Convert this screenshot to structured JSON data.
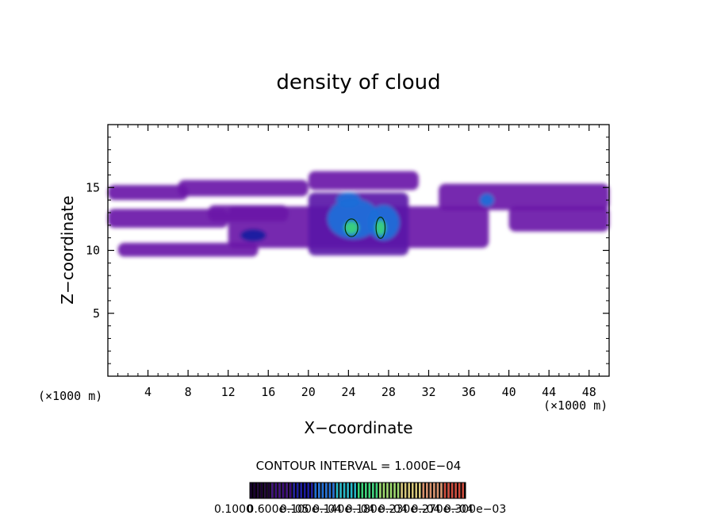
{
  "chart_data": {
    "type": "heatmap",
    "title": "density of cloud",
    "xlabel": "X−coordinate",
    "ylabel": "Z−coordinate",
    "x_unit": "(×1000 m)",
    "y_unit": "(×1000 m)",
    "xlim": [
      0,
      50
    ],
    "ylim": [
      0,
      20
    ],
    "x_ticks": [
      4,
      8,
      12,
      16,
      20,
      24,
      28,
      32,
      36,
      40,
      44,
      48
    ],
    "y_ticks": [
      5,
      10,
      15
    ],
    "contour_interval_text": "CONTOUR INTERVAL = 1.000E−04",
    "colorbar_labels": [
      "0.1000",
      "0.600e−05",
      "0.100e−04",
      "0.140e−04",
      "0.180e−04",
      "0.230e−04",
      "0.270e−04",
      "0.300e−03"
    ],
    "colorbar_colors": [
      "#1a0033",
      "#3a0a7a",
      "#1a1aa0",
      "#1e6ed8",
      "#22b8c8",
      "#3ad47a",
      "#9ad86a",
      "#d8c87a",
      "#d8906a",
      "#d04a3a"
    ],
    "cloud_layers": [
      {
        "x": [
          0,
          8
        ],
        "z_bottom": 14.0,
        "z_top": 15.2,
        "level": 1
      },
      {
        "x": [
          7,
          20
        ],
        "z_bottom": 14.3,
        "z_top": 15.6,
        "level": 1
      },
      {
        "x": [
          20,
          31
        ],
        "z_bottom": 14.8,
        "z_top": 16.3,
        "level": 1
      },
      {
        "x": [
          0,
          12
        ],
        "z_bottom": 11.8,
        "z_top": 13.3,
        "level": 1
      },
      {
        "x": [
          10,
          18
        ],
        "z_bottom": 12.3,
        "z_top": 13.6,
        "level": 1
      },
      {
        "x": [
          1,
          15
        ],
        "z_bottom": 9.5,
        "z_top": 10.6,
        "level": 1
      },
      {
        "x": [
          12,
          38
        ],
        "z_bottom": 10.2,
        "z_top": 13.5,
        "level": 1
      },
      {
        "x": [
          20,
          30
        ],
        "z_bottom": 9.6,
        "z_top": 14.6,
        "level": 2
      },
      {
        "x": [
          33,
          50
        ],
        "z_bottom": 13.2,
        "z_top": 15.3,
        "level": 1
      },
      {
        "x": [
          40,
          50
        ],
        "z_bottom": 11.5,
        "z_top": 13.5,
        "level": 1
      }
    ],
    "cloud_cores": [
      {
        "x": 24.5,
        "z": 12.5,
        "rx": 2.6,
        "rz": 1.6,
        "level": 3
      },
      {
        "x": 27.5,
        "z": 12.2,
        "rx": 1.6,
        "rz": 1.4,
        "level": 3
      },
      {
        "x": 24.0,
        "z": 14.0,
        "rx": 1.2,
        "rz": 0.6,
        "level": 3
      },
      {
        "x": 37.8,
        "z": 14.0,
        "rx": 0.7,
        "rz": 0.5,
        "level": 3
      },
      {
        "x": 14.5,
        "z": 11.2,
        "rx": 1.3,
        "rz": 0.5,
        "level": 2
      },
      {
        "x": 24.3,
        "z": 11.8,
        "rx": 0.7,
        "rz": 0.5,
        "level": 5
      },
      {
        "x": 27.2,
        "z": 11.8,
        "rx": 0.5,
        "rz": 0.6,
        "level": 5
      }
    ]
  }
}
